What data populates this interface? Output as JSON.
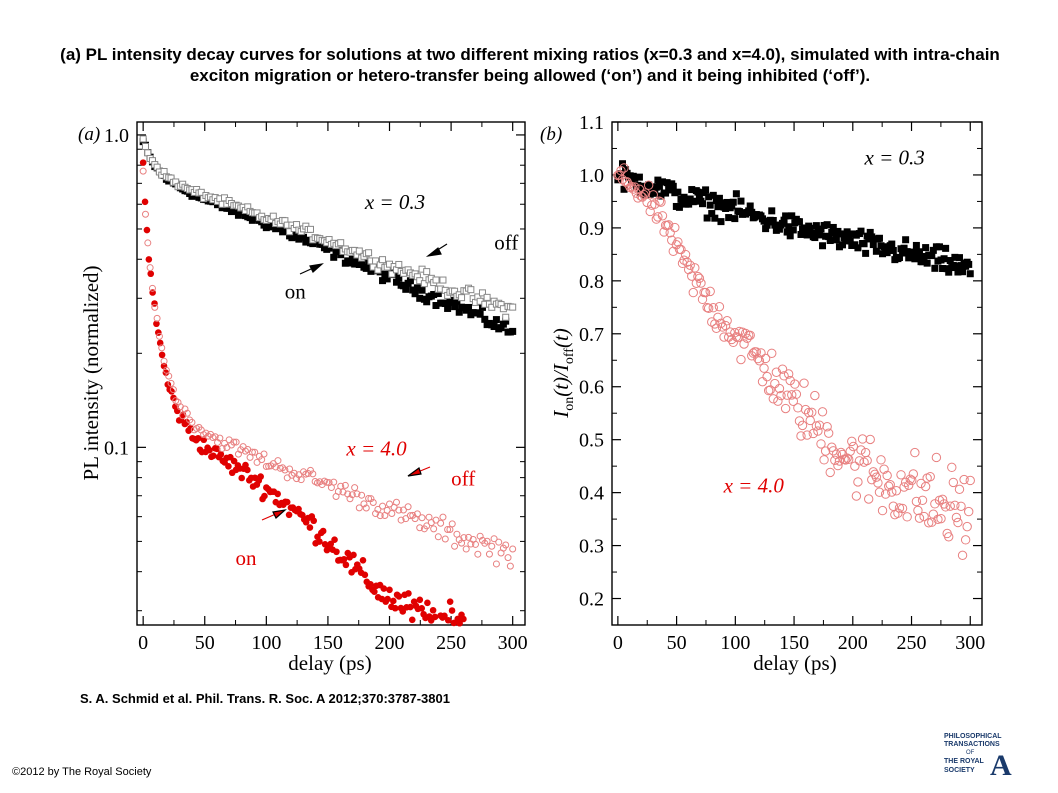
{
  "slide": {
    "title": "(a) PL intensity decay curves for solutions at two different mixing ratios (x=0.3 and x=4.0), simulated with intra-chain exciton migration or hetero-transfer being allowed (‘on’) and it being inhibited (‘off’).",
    "citation": "S. A. Schmid et al. Phil. Trans. R. Soc. A 2012;370:3787-3801",
    "copyright": "©2012 by The Royal Society",
    "logo": [
      "PHILOSOPHICAL",
      "TRANSACTIONS",
      "OF",
      "THE ROYAL",
      "SOCIETY",
      "A"
    ]
  },
  "colors": {
    "black": "#000000",
    "grey": "#888888",
    "red": "#e00000",
    "pink": "#e88080"
  },
  "chart_data": [
    {
      "panel": "(a)",
      "type": "scatter",
      "xlabel": "delay (ps)",
      "ylabel": "PL intensity (normalized)",
      "xlim": [
        -5,
        310
      ],
      "ylim": [
        0.027,
        1.1
      ],
      "yscale": "log",
      "xticks": [
        0,
        50,
        100,
        150,
        200,
        250,
        300
      ],
      "yticks": [
        1.0,
        0.1
      ],
      "ytick_labels": [
        "1.0",
        "0.1"
      ],
      "annotations": [
        {
          "text": "x = 0.3",
          "x": 180,
          "y": 0.58
        },
        {
          "text": "off",
          "x": 285,
          "y": 0.43
        },
        {
          "text": "on",
          "x": 115,
          "y": 0.3
        },
        {
          "text": "x = 4.0",
          "x": 165,
          "y": 0.094
        },
        {
          "text": "off",
          "x": 250,
          "y": 0.0755
        },
        {
          "text": "on",
          "x": 75,
          "y": 0.042
        }
      ],
      "series": [
        {
          "style": "filled-square",
          "color": "#000000",
          "x": [
            0,
            5,
            10,
            15,
            20,
            30,
            40,
            50,
            60,
            80,
            100,
            120,
            150,
            180,
            200,
            220,
            250,
            280,
            300
          ],
          "y": [
            0.95,
            0.85,
            0.79,
            0.75,
            0.72,
            0.68,
            0.65,
            0.62,
            0.6,
            0.56,
            0.52,
            0.48,
            0.43,
            0.38,
            0.35,
            0.32,
            0.29,
            0.255,
            0.235
          ],
          "noise": 0.03
        },
        {
          "style": "open-square",
          "color": "#888888",
          "x": [
            0,
            5,
            10,
            15,
            20,
            30,
            40,
            50,
            60,
            80,
            100,
            120,
            150,
            180,
            200,
            220,
            250,
            280,
            300
          ],
          "y": [
            0.96,
            0.86,
            0.8,
            0.76,
            0.73,
            0.69,
            0.66,
            0.64,
            0.62,
            0.58,
            0.54,
            0.51,
            0.46,
            0.41,
            0.38,
            0.36,
            0.32,
            0.29,
            0.275
          ],
          "noise": 0.03
        },
        {
          "style": "filled-circle",
          "color": "#e00000",
          "x": [
            0,
            2,
            5,
            8,
            10,
            15,
            20,
            25,
            30,
            40,
            50,
            60,
            80,
            100,
            120,
            140,
            160,
            180,
            200,
            220,
            240,
            260
          ],
          "y": [
            0.82,
            0.55,
            0.4,
            0.31,
            0.26,
            0.2,
            0.16,
            0.14,
            0.125,
            0.11,
            0.1,
            0.094,
            0.084,
            0.074,
            0.064,
            0.055,
            0.046,
            0.038,
            0.033,
            0.03,
            0.028,
            0.027
          ],
          "noise": 0.07
        },
        {
          "style": "open-circle",
          "color": "#e88080",
          "x": [
            0,
            2,
            5,
            8,
            10,
            15,
            20,
            25,
            30,
            40,
            50,
            60,
            80,
            100,
            120,
            150,
            180,
            200,
            230,
            260,
            300
          ],
          "y": [
            0.8,
            0.55,
            0.4,
            0.31,
            0.27,
            0.21,
            0.17,
            0.15,
            0.135,
            0.12,
            0.112,
            0.106,
            0.098,
            0.09,
            0.084,
            0.076,
            0.068,
            0.063,
            0.057,
            0.051,
            0.046
          ],
          "noise": 0.05
        }
      ]
    },
    {
      "panel": "(b)",
      "type": "scatter",
      "xlabel": "delay (ps)",
      "ylabel_main": "I",
      "ylabel_sub1": "on",
      "ylabel_mid": "(t)/I",
      "ylabel_sub2": "off",
      "ylabel_end": "(t)",
      "xlim": [
        -5,
        310
      ],
      "ylim": [
        0.15,
        1.1
      ],
      "xticks": [
        0,
        50,
        100,
        150,
        200,
        250,
        300
      ],
      "yticks": [
        0.2,
        0.3,
        0.4,
        0.5,
        0.6,
        0.7,
        0.8,
        0.9,
        1.0,
        1.1
      ],
      "annotations": [
        {
          "text": "x = 0.3",
          "x": 210,
          "y": 1.02
        },
        {
          "text": "x = 4.0",
          "x": 90,
          "y": 0.4
        }
      ],
      "series": [
        {
          "style": "filled-square",
          "color": "#000000",
          "x": [
            0,
            10,
            20,
            30,
            40,
            50,
            60,
            80,
            100,
            120,
            150,
            180,
            200,
            220,
            250,
            280,
            300
          ],
          "y": [
            1.0,
            0.99,
            0.985,
            0.98,
            0.97,
            0.96,
            0.955,
            0.945,
            0.935,
            0.92,
            0.9,
            0.885,
            0.875,
            0.865,
            0.85,
            0.835,
            0.82
          ],
          "noise": 0.035
        },
        {
          "style": "open-circle",
          "color": "#e88080",
          "x": [
            0,
            10,
            20,
            30,
            40,
            50,
            60,
            80,
            100,
            120,
            150,
            180,
            200,
            220,
            250,
            280,
            300
          ],
          "y": [
            1.0,
            0.985,
            0.965,
            0.94,
            0.91,
            0.86,
            0.82,
            0.75,
            0.7,
            0.65,
            0.57,
            0.5,
            0.46,
            0.43,
            0.4,
            0.37,
            0.36
          ],
          "noise": 0.07
        }
      ]
    }
  ]
}
